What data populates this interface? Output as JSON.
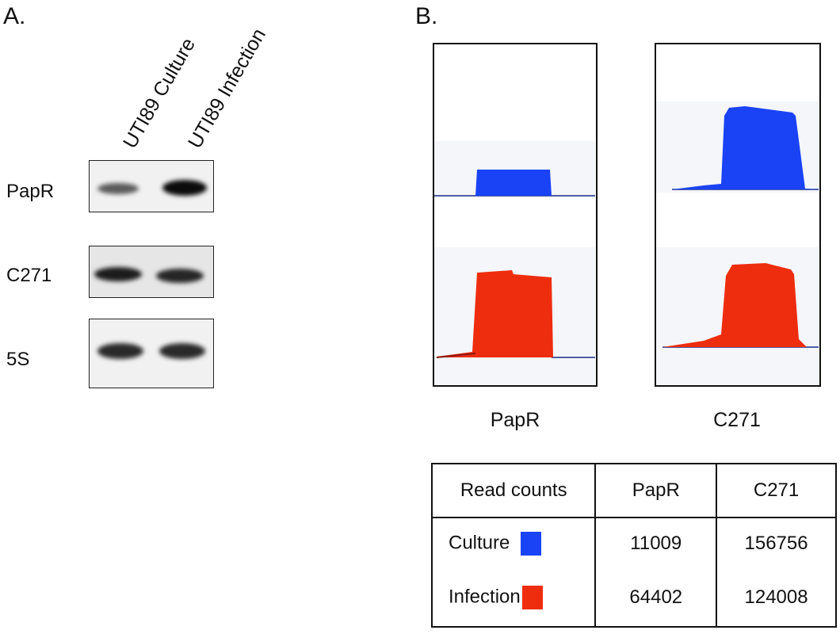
{
  "panel_a": {
    "letter": "A.",
    "lanes": [
      "UTI89 Culture",
      "UTI89 Infection"
    ],
    "rows": [
      {
        "label": "PapR"
      },
      {
        "label": "C271"
      },
      {
        "label": "5S"
      }
    ]
  },
  "panel_b": {
    "letter": "B.",
    "tracks": [
      {
        "label": "PapR"
      },
      {
        "label": "C271"
      }
    ],
    "colors": {
      "culture": "#1a43f5",
      "infection": "#ee2d0e"
    },
    "table": {
      "header": [
        "Read counts",
        "PapR",
        "C271"
      ],
      "rows": [
        {
          "label": "Culture",
          "color": "#1a43f5",
          "values": [
            "11009",
            "156756"
          ]
        },
        {
          "label": "Infection",
          "color": "#ee2d0e",
          "values": [
            "64402",
            "124008"
          ]
        }
      ]
    }
  }
}
